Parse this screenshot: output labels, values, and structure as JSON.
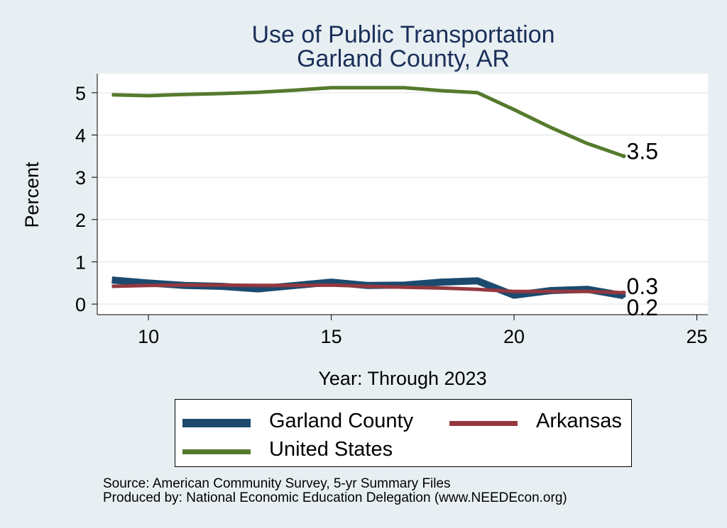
{
  "chart_data": {
    "type": "line",
    "title": "Use of Public Transportation",
    "subtitle": "Garland County, AR",
    "xlabel": "Year: Through 2023",
    "ylabel": "Percent",
    "xlim": [
      8.6,
      25.3
    ],
    "ylim": [
      -0.25,
      5.45
    ],
    "xticks": [
      10,
      15,
      20,
      25
    ],
    "yticks": [
      0,
      1,
      2,
      3,
      4,
      5
    ],
    "grid": true,
    "legend_position": "bottom",
    "series": [
      {
        "name": "Garland County",
        "color": "#1b4a6e",
        "stroke": 10,
        "x": [
          9,
          10,
          11,
          12,
          13,
          14,
          15,
          16,
          17,
          18,
          19,
          20,
          21,
          22,
          23
        ],
        "y": [
          0.57,
          0.5,
          0.44,
          0.42,
          0.36,
          0.44,
          0.52,
          0.44,
          0.45,
          0.52,
          0.55,
          0.21,
          0.32,
          0.35,
          0.2
        ],
        "end_label": "0.2"
      },
      {
        "name": "Arkansas",
        "color": "#94383f",
        "stroke": 5,
        "x": [
          9,
          10,
          11,
          12,
          13,
          14,
          15,
          16,
          17,
          18,
          19,
          20,
          21,
          22,
          23
        ],
        "y": [
          0.42,
          0.44,
          0.45,
          0.45,
          0.44,
          0.44,
          0.45,
          0.42,
          0.4,
          0.38,
          0.35,
          0.3,
          0.3,
          0.3,
          0.27
        ],
        "end_label": "0.3"
      },
      {
        "name": "United States",
        "color": "#567a2d",
        "stroke": 5,
        "x": [
          9,
          10,
          11,
          12,
          13,
          14,
          15,
          16,
          17,
          18,
          19,
          20,
          21,
          22,
          23
        ],
        "y": [
          4.95,
          4.93,
          4.96,
          4.98,
          5.01,
          5.06,
          5.12,
          5.12,
          5.12,
          5.05,
          5.0,
          4.6,
          4.18,
          3.8,
          3.5
        ],
        "end_label": "3.5"
      }
    ]
  },
  "notes": {
    "source": "Source: American Community Survey, 5-yr Summary Files",
    "produced": "Produced by: National Economic Education Delegation (www.NEEDEcon.org)"
  }
}
